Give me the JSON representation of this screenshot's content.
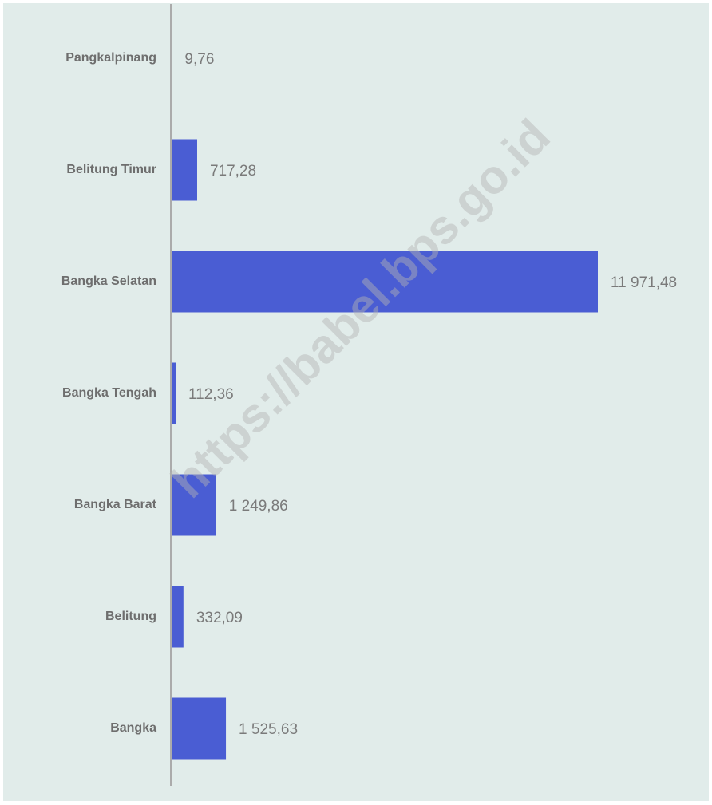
{
  "chart_data": {
    "type": "hbar",
    "categories": [
      "Pangkalpinang",
      "Belitung Timur",
      "Bangka Selatan",
      "Bangka Tengah",
      "Bangka Barat",
      "Belitung",
      "Bangka"
    ],
    "values": [
      9.76,
      717.28,
      11971.48,
      112.36,
      1249.86,
      332.09,
      1525.63
    ],
    "value_labels": [
      "9,76",
      "717,28",
      "11 971,48",
      "112,36",
      "1 249,86",
      "332,09",
      "1 525,63"
    ],
    "color": "#4a5dd3",
    "watermark": "https://babel.bps.go.id"
  }
}
